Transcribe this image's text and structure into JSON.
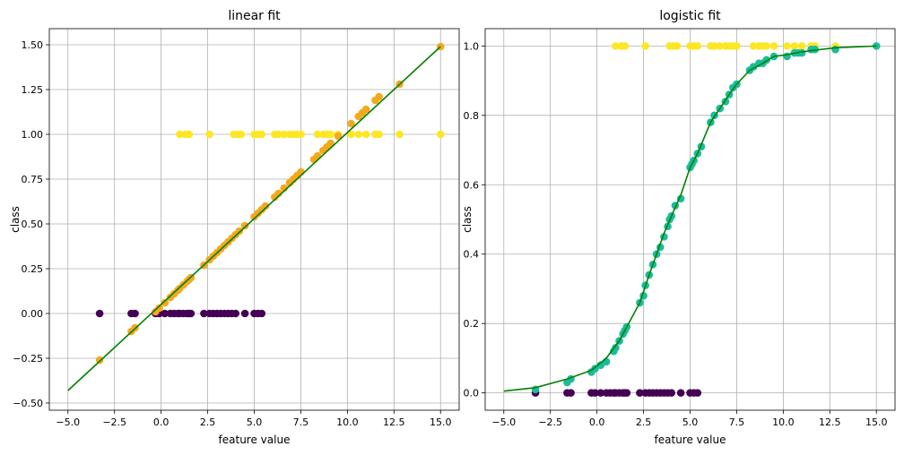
{
  "chart_data": [
    {
      "type": "scatter",
      "title": "linear fit",
      "xlabel": "feature value",
      "ylabel": "class",
      "xlim": [
        -6,
        16
      ],
      "ylim": [
        -0.54,
        1.59
      ],
      "xticks": [
        -5.0,
        -2.5,
        0.0,
        2.5,
        5.0,
        7.5,
        10.0,
        12.5,
        15.0
      ],
      "xtick_labels": [
        "−5.0",
        "−2.5",
        "0.0",
        "2.5",
        "5.0",
        "7.5",
        "10.0",
        "12.5",
        "15.0"
      ],
      "yticks": [
        -0.5,
        -0.25,
        0.0,
        0.25,
        0.5,
        0.75,
        1.0,
        1.25,
        1.5
      ],
      "ytick_labels": [
        "−0.50",
        "−0.25",
        "0.00",
        "0.25",
        "0.50",
        "0.75",
        "1.00",
        "1.25",
        "1.50"
      ],
      "grid": true,
      "series": [
        {
          "kind": "scatter",
          "color": "#440154",
          "x": [
            -3.3,
            -1.6,
            -1.4,
            -0.3,
            -0.1,
            0.2,
            0.5,
            0.7,
            0.9,
            1.0,
            1.2,
            1.4,
            1.5,
            1.6,
            2.3,
            2.6,
            2.8,
            3.0,
            3.2,
            3.4,
            3.6,
            3.8,
            4.0,
            4.5,
            5.0,
            5.2,
            5.4
          ],
          "y": [
            0,
            0,
            0,
            0,
            0,
            0,
            0,
            0,
            0,
            0,
            0,
            0,
            0,
            0,
            0,
            0,
            0,
            0,
            0,
            0,
            0,
            0,
            0,
            0,
            0,
            0,
            0
          ]
        },
        {
          "kind": "scatter",
          "color": "#fde725",
          "x": [
            1.0,
            1.3,
            1.5,
            2.6,
            3.9,
            4.1,
            4.3,
            5.0,
            5.2,
            5.4,
            6.1,
            6.3,
            6.6,
            6.9,
            7.1,
            7.3,
            7.5,
            8.4,
            8.7,
            8.9,
            9.1,
            9.5,
            10.2,
            10.6,
            11.0,
            11.5,
            11.7,
            12.8,
            15.0
          ],
          "y": [
            1,
            1,
            1,
            1,
            1,
            1,
            1,
            1,
            1,
            1,
            1,
            1,
            1,
            1,
            1,
            1,
            1,
            1,
            1,
            1,
            1,
            1,
            1,
            1,
            1,
            1,
            1,
            1,
            1
          ]
        },
        {
          "kind": "scatter",
          "color": "#f5a81c",
          "x": [
            -3.3,
            -1.6,
            -1.4,
            -0.3,
            -0.1,
            0.2,
            0.5,
            0.7,
            0.9,
            1.0,
            1.2,
            1.4,
            1.5,
            1.6,
            2.3,
            2.6,
            2.8,
            3.0,
            3.2,
            3.4,
            3.6,
            3.8,
            4.0,
            4.2,
            4.5,
            5.0,
            5.2,
            5.4,
            5.6,
            6.1,
            6.3,
            6.6,
            6.9,
            7.1,
            7.3,
            7.5,
            8.2,
            8.4,
            8.7,
            8.9,
            9.1,
            9.5,
            10.2,
            10.6,
            10.8,
            11.0,
            11.5,
            11.7,
            12.8,
            15.0
          ],
          "y": [
            -0.26,
            -0.1,
            -0.08,
            0.01,
            0.03,
            0.06,
            0.09,
            0.11,
            0.13,
            0.14,
            0.16,
            0.18,
            0.19,
            0.2,
            0.27,
            0.3,
            0.32,
            0.34,
            0.36,
            0.38,
            0.4,
            0.42,
            0.44,
            0.46,
            0.49,
            0.54,
            0.56,
            0.58,
            0.6,
            0.65,
            0.67,
            0.7,
            0.73,
            0.75,
            0.77,
            0.79,
            0.86,
            0.88,
            0.91,
            0.93,
            0.95,
            0.99,
            1.06,
            1.1,
            1.12,
            1.14,
            1.19,
            1.21,
            1.28,
            1.49
          ]
        },
        {
          "kind": "line",
          "color": "#008000",
          "x": [
            -5.0,
            15.0
          ],
          "y": [
            -0.43,
            1.49
          ]
        }
      ]
    },
    {
      "type": "scatter",
      "title": "logistic fit",
      "xlabel": "feature value",
      "ylabel": "class",
      "xlim": [
        -6,
        16
      ],
      "ylim": [
        -0.05,
        1.05
      ],
      "xticks": [
        -5.0,
        -2.5,
        0.0,
        2.5,
        5.0,
        7.5,
        10.0,
        12.5,
        15.0
      ],
      "xtick_labels": [
        "−5.0",
        "−2.5",
        "0.0",
        "2.5",
        "5.0",
        "7.5",
        "10.0",
        "12.5",
        "15.0"
      ],
      "yticks": [
        0.0,
        0.2,
        0.4,
        0.6,
        0.8,
        1.0
      ],
      "ytick_labels": [
        "0.0",
        "0.2",
        "0.4",
        "0.6",
        "0.8",
        "1.0"
      ],
      "grid": true,
      "series": [
        {
          "kind": "scatter",
          "color": "#440154",
          "x": [
            -3.3,
            -1.6,
            -1.4,
            -0.3,
            -0.1,
            0.2,
            0.5,
            0.7,
            0.9,
            1.0,
            1.2,
            1.4,
            1.5,
            1.6,
            2.3,
            2.6,
            2.8,
            3.0,
            3.2,
            3.4,
            3.6,
            3.8,
            4.0,
            4.5,
            5.0,
            5.2,
            5.4
          ],
          "y": [
            0,
            0,
            0,
            0,
            0,
            0,
            0,
            0,
            0,
            0,
            0,
            0,
            0,
            0,
            0,
            0,
            0,
            0,
            0,
            0,
            0,
            0,
            0,
            0,
            0,
            0,
            0
          ]
        },
        {
          "kind": "scatter",
          "color": "#fde725",
          "x": [
            1.0,
            1.3,
            1.5,
            2.6,
            3.9,
            4.1,
            4.3,
            5.0,
            5.2,
            5.4,
            6.1,
            6.3,
            6.6,
            6.9,
            7.1,
            7.3,
            7.5,
            8.4,
            8.7,
            8.9,
            9.1,
            9.5,
            10.2,
            10.6,
            11.0,
            11.5,
            11.7,
            12.8
          ],
          "y": [
            1,
            1,
            1,
            1,
            1,
            1,
            1,
            1,
            1,
            1,
            1,
            1,
            1,
            1,
            1,
            1,
            1,
            1,
            1,
            1,
            1,
            1,
            1,
            1,
            1,
            1,
            1,
            1
          ]
        },
        {
          "kind": "scatter",
          "color": "#1abc9c",
          "x": [
            -3.3,
            -1.6,
            -1.4,
            -0.3,
            -0.1,
            0.2,
            0.5,
            0.9,
            1.0,
            1.2,
            1.4,
            1.5,
            1.6,
            2.3,
            2.5,
            2.6,
            2.8,
            3.0,
            3.2,
            3.4,
            3.6,
            3.8,
            3.9,
            4.0,
            4.2,
            4.5,
            5.0,
            5.1,
            5.2,
            5.4,
            5.6,
            6.1,
            6.3,
            6.6,
            6.9,
            7.1,
            7.3,
            7.5,
            8.2,
            8.4,
            8.7,
            8.9,
            9.1,
            9.5,
            10.2,
            10.6,
            10.8,
            11.0,
            11.5,
            11.7,
            12.8,
            15.0
          ],
          "y": [
            0.01,
            0.03,
            0.04,
            0.06,
            0.07,
            0.08,
            0.09,
            0.12,
            0.13,
            0.15,
            0.17,
            0.18,
            0.19,
            0.26,
            0.28,
            0.31,
            0.34,
            0.37,
            0.4,
            0.42,
            0.45,
            0.48,
            0.5,
            0.51,
            0.54,
            0.56,
            0.65,
            0.66,
            0.67,
            0.69,
            0.71,
            0.78,
            0.8,
            0.82,
            0.84,
            0.86,
            0.88,
            0.89,
            0.93,
            0.94,
            0.95,
            0.95,
            0.96,
            0.97,
            0.97,
            0.98,
            0.98,
            0.98,
            0.99,
            0.99,
            0.99,
            1.0
          ]
        },
        {
          "kind": "line",
          "color": "#008000",
          "x": [
            -5.0,
            -3.3,
            -1.6,
            -0.3,
            0.5,
            1.2,
            1.6,
            2.3,
            2.8,
            3.2,
            3.6,
            4.0,
            4.5,
            5.0,
            5.4,
            6.1,
            6.6,
            7.1,
            7.5,
            8.2,
            8.9,
            9.5,
            10.2,
            11.0,
            11.7,
            12.8,
            15.0
          ],
          "y": [
            0.005,
            0.015,
            0.04,
            0.065,
            0.1,
            0.15,
            0.19,
            0.26,
            0.34,
            0.4,
            0.46,
            0.51,
            0.57,
            0.65,
            0.69,
            0.78,
            0.82,
            0.86,
            0.89,
            0.93,
            0.95,
            0.97,
            0.975,
            0.983,
            0.988,
            0.995,
            1.0
          ]
        }
      ]
    }
  ]
}
